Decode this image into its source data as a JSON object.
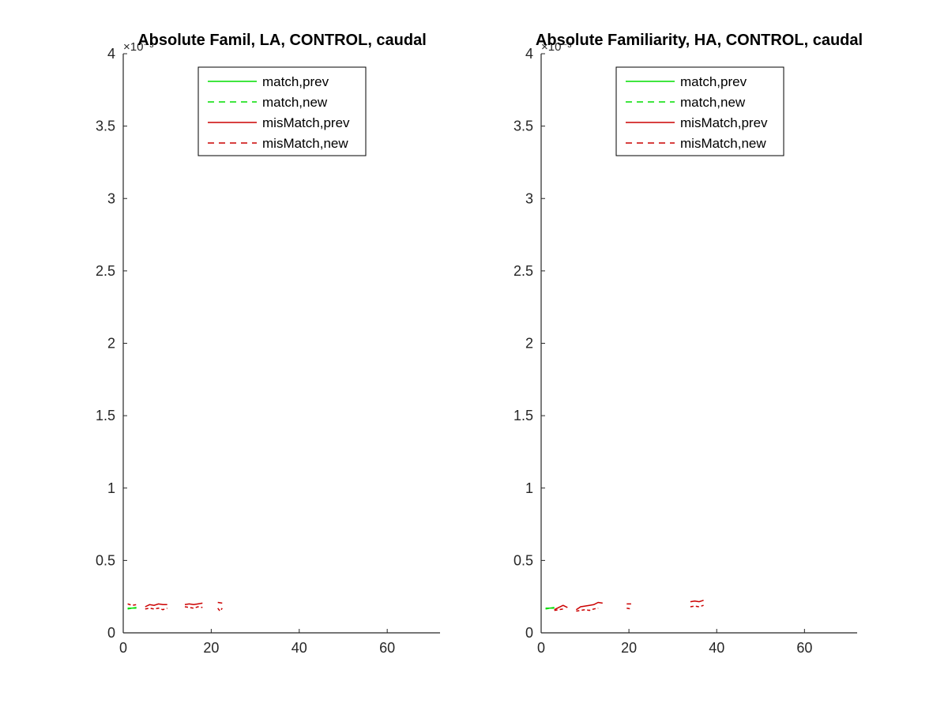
{
  "colors": {
    "axis": "#262626",
    "match": "#00dd00",
    "mismatch": "#cc0000"
  },
  "chart_data": [
    {
      "type": "line",
      "title": "Absolute Famil, LA, CONTROL, caudal",
      "y_exponent_label": "×10⁻³",
      "xlim": [
        0,
        72
      ],
      "ylim": [
        0,
        4
      ],
      "y_scale_factor": 0.001,
      "x_ticks": [
        0,
        20,
        40,
        60
      ],
      "x_tick_labels": [
        "0",
        "20",
        "40",
        "60"
      ],
      "y_ticks": [
        0,
        0.5,
        1,
        1.5,
        2,
        2.5,
        3,
        3.5,
        4
      ],
      "y_tick_labels": [
        "0",
        "0.5",
        "1",
        "1.5",
        "2",
        "2.5",
        "3",
        "3.5",
        "4"
      ],
      "grid": false,
      "legend_position": "top",
      "series": [
        {
          "name": "match,prev",
          "color": "#00dd00",
          "dash": "solid",
          "segments": [
            [
              [
                1.0,
                0.17
              ],
              [
                2.0,
                0.17
              ],
              [
                3.0,
                0.175
              ]
            ]
          ]
        },
        {
          "name": "match,new",
          "color": "#00dd00",
          "dash": "dashed",
          "segments": [
            [
              [
                1.0,
                0.165
              ],
              [
                2.0,
                0.17
              ],
              [
                3.0,
                0.17
              ]
            ]
          ]
        },
        {
          "name": "misMatch,prev",
          "color": "#cc0000",
          "dash": "solid",
          "segments": [
            [
              [
                5.0,
                0.18
              ],
              [
                6.0,
                0.195
              ],
              [
                7.0,
                0.19
              ],
              [
                8.0,
                0.2
              ],
              [
                9.0,
                0.195
              ],
              [
                10.0,
                0.195
              ]
            ],
            [
              [
                14.0,
                0.195
              ],
              [
                15.0,
                0.2
              ],
              [
                16.0,
                0.195
              ],
              [
                17.0,
                0.2
              ],
              [
                18.0,
                0.205
              ]
            ],
            [
              [
                21.5,
                0.21
              ],
              [
                22.5,
                0.205
              ]
            ]
          ]
        },
        {
          "name": "misMatch,new",
          "color": "#cc0000",
          "dash": "dashed",
          "segments": [
            [
              [
                1.0,
                0.2
              ],
              [
                2.0,
                0.19
              ],
              [
                3.0,
                0.195
              ]
            ],
            [
              [
                5.0,
                0.165
              ],
              [
                6.0,
                0.17
              ],
              [
                7.0,
                0.165
              ],
              [
                8.0,
                0.17
              ],
              [
                9.0,
                0.16
              ],
              [
                10.0,
                0.17
              ]
            ],
            [
              [
                14.0,
                0.18
              ],
              [
                15.0,
                0.175
              ],
              [
                16.0,
                0.17
              ],
              [
                17.0,
                0.18
              ],
              [
                18.0,
                0.175
              ]
            ],
            [
              [
                21.5,
                0.17
              ],
              [
                22.0,
                0.15
              ],
              [
                22.5,
                0.17
              ]
            ]
          ]
        }
      ]
    },
    {
      "type": "line",
      "title": "Absolute Familiarity, HA, CONTROL, caudal",
      "y_exponent_label": "×10⁻³",
      "xlim": [
        0,
        72
      ],
      "ylim": [
        0,
        4
      ],
      "y_scale_factor": 0.001,
      "x_ticks": [
        0,
        20,
        40,
        60
      ],
      "x_tick_labels": [
        "0",
        "20",
        "40",
        "60"
      ],
      "y_ticks": [
        0,
        0.5,
        1,
        1.5,
        2,
        2.5,
        3,
        3.5,
        4
      ],
      "y_tick_labels": [
        "0",
        "0.5",
        "1",
        "1.5",
        "2",
        "2.5",
        "3",
        "3.5",
        "4"
      ],
      "grid": false,
      "legend_position": "top",
      "series": [
        {
          "name": "match,prev",
          "color": "#00dd00",
          "dash": "solid",
          "segments": [
            [
              [
                1.0,
                0.17
              ],
              [
                2.0,
                0.17
              ],
              [
                3.0,
                0.175
              ]
            ]
          ]
        },
        {
          "name": "match,new",
          "color": "#00dd00",
          "dash": "dashed",
          "segments": [
            [
              [
                1.0,
                0.165
              ],
              [
                2.0,
                0.17
              ],
              [
                3.0,
                0.17
              ]
            ]
          ]
        },
        {
          "name": "misMatch,prev",
          "color": "#cc0000",
          "dash": "solid",
          "segments": [
            [
              [
                3.0,
                0.16
              ],
              [
                4.0,
                0.175
              ],
              [
                5.0,
                0.19
              ],
              [
                6.0,
                0.175
              ]
            ],
            [
              [
                8.0,
                0.16
              ],
              [
                9.0,
                0.18
              ],
              [
                10.0,
                0.185
              ],
              [
                11.0,
                0.19
              ],
              [
                12.0,
                0.195
              ],
              [
                13.0,
                0.21
              ],
              [
                14.0,
                0.205
              ]
            ],
            [
              [
                19.5,
                0.2
              ],
              [
                20.5,
                0.2
              ]
            ],
            [
              [
                34.0,
                0.215
              ],
              [
                35.0,
                0.22
              ],
              [
                36.0,
                0.215
              ],
              [
                37.0,
                0.225
              ]
            ]
          ]
        },
        {
          "name": "misMatch,new",
          "color": "#cc0000",
          "dash": "dashed",
          "segments": [
            [
              [
                3.0,
                0.155
              ],
              [
                4.0,
                0.16
              ],
              [
                5.0,
                0.165
              ]
            ],
            [
              [
                8.0,
                0.15
              ],
              [
                9.0,
                0.155
              ],
              [
                10.0,
                0.16
              ],
              [
                11.0,
                0.155
              ],
              [
                12.0,
                0.165
              ],
              [
                13.0,
                0.17
              ]
            ],
            [
              [
                19.5,
                0.17
              ],
              [
                20.5,
                0.165
              ]
            ],
            [
              [
                34.0,
                0.18
              ],
              [
                35.0,
                0.185
              ],
              [
                36.0,
                0.18
              ],
              [
                37.0,
                0.19
              ]
            ]
          ]
        }
      ]
    }
  ]
}
